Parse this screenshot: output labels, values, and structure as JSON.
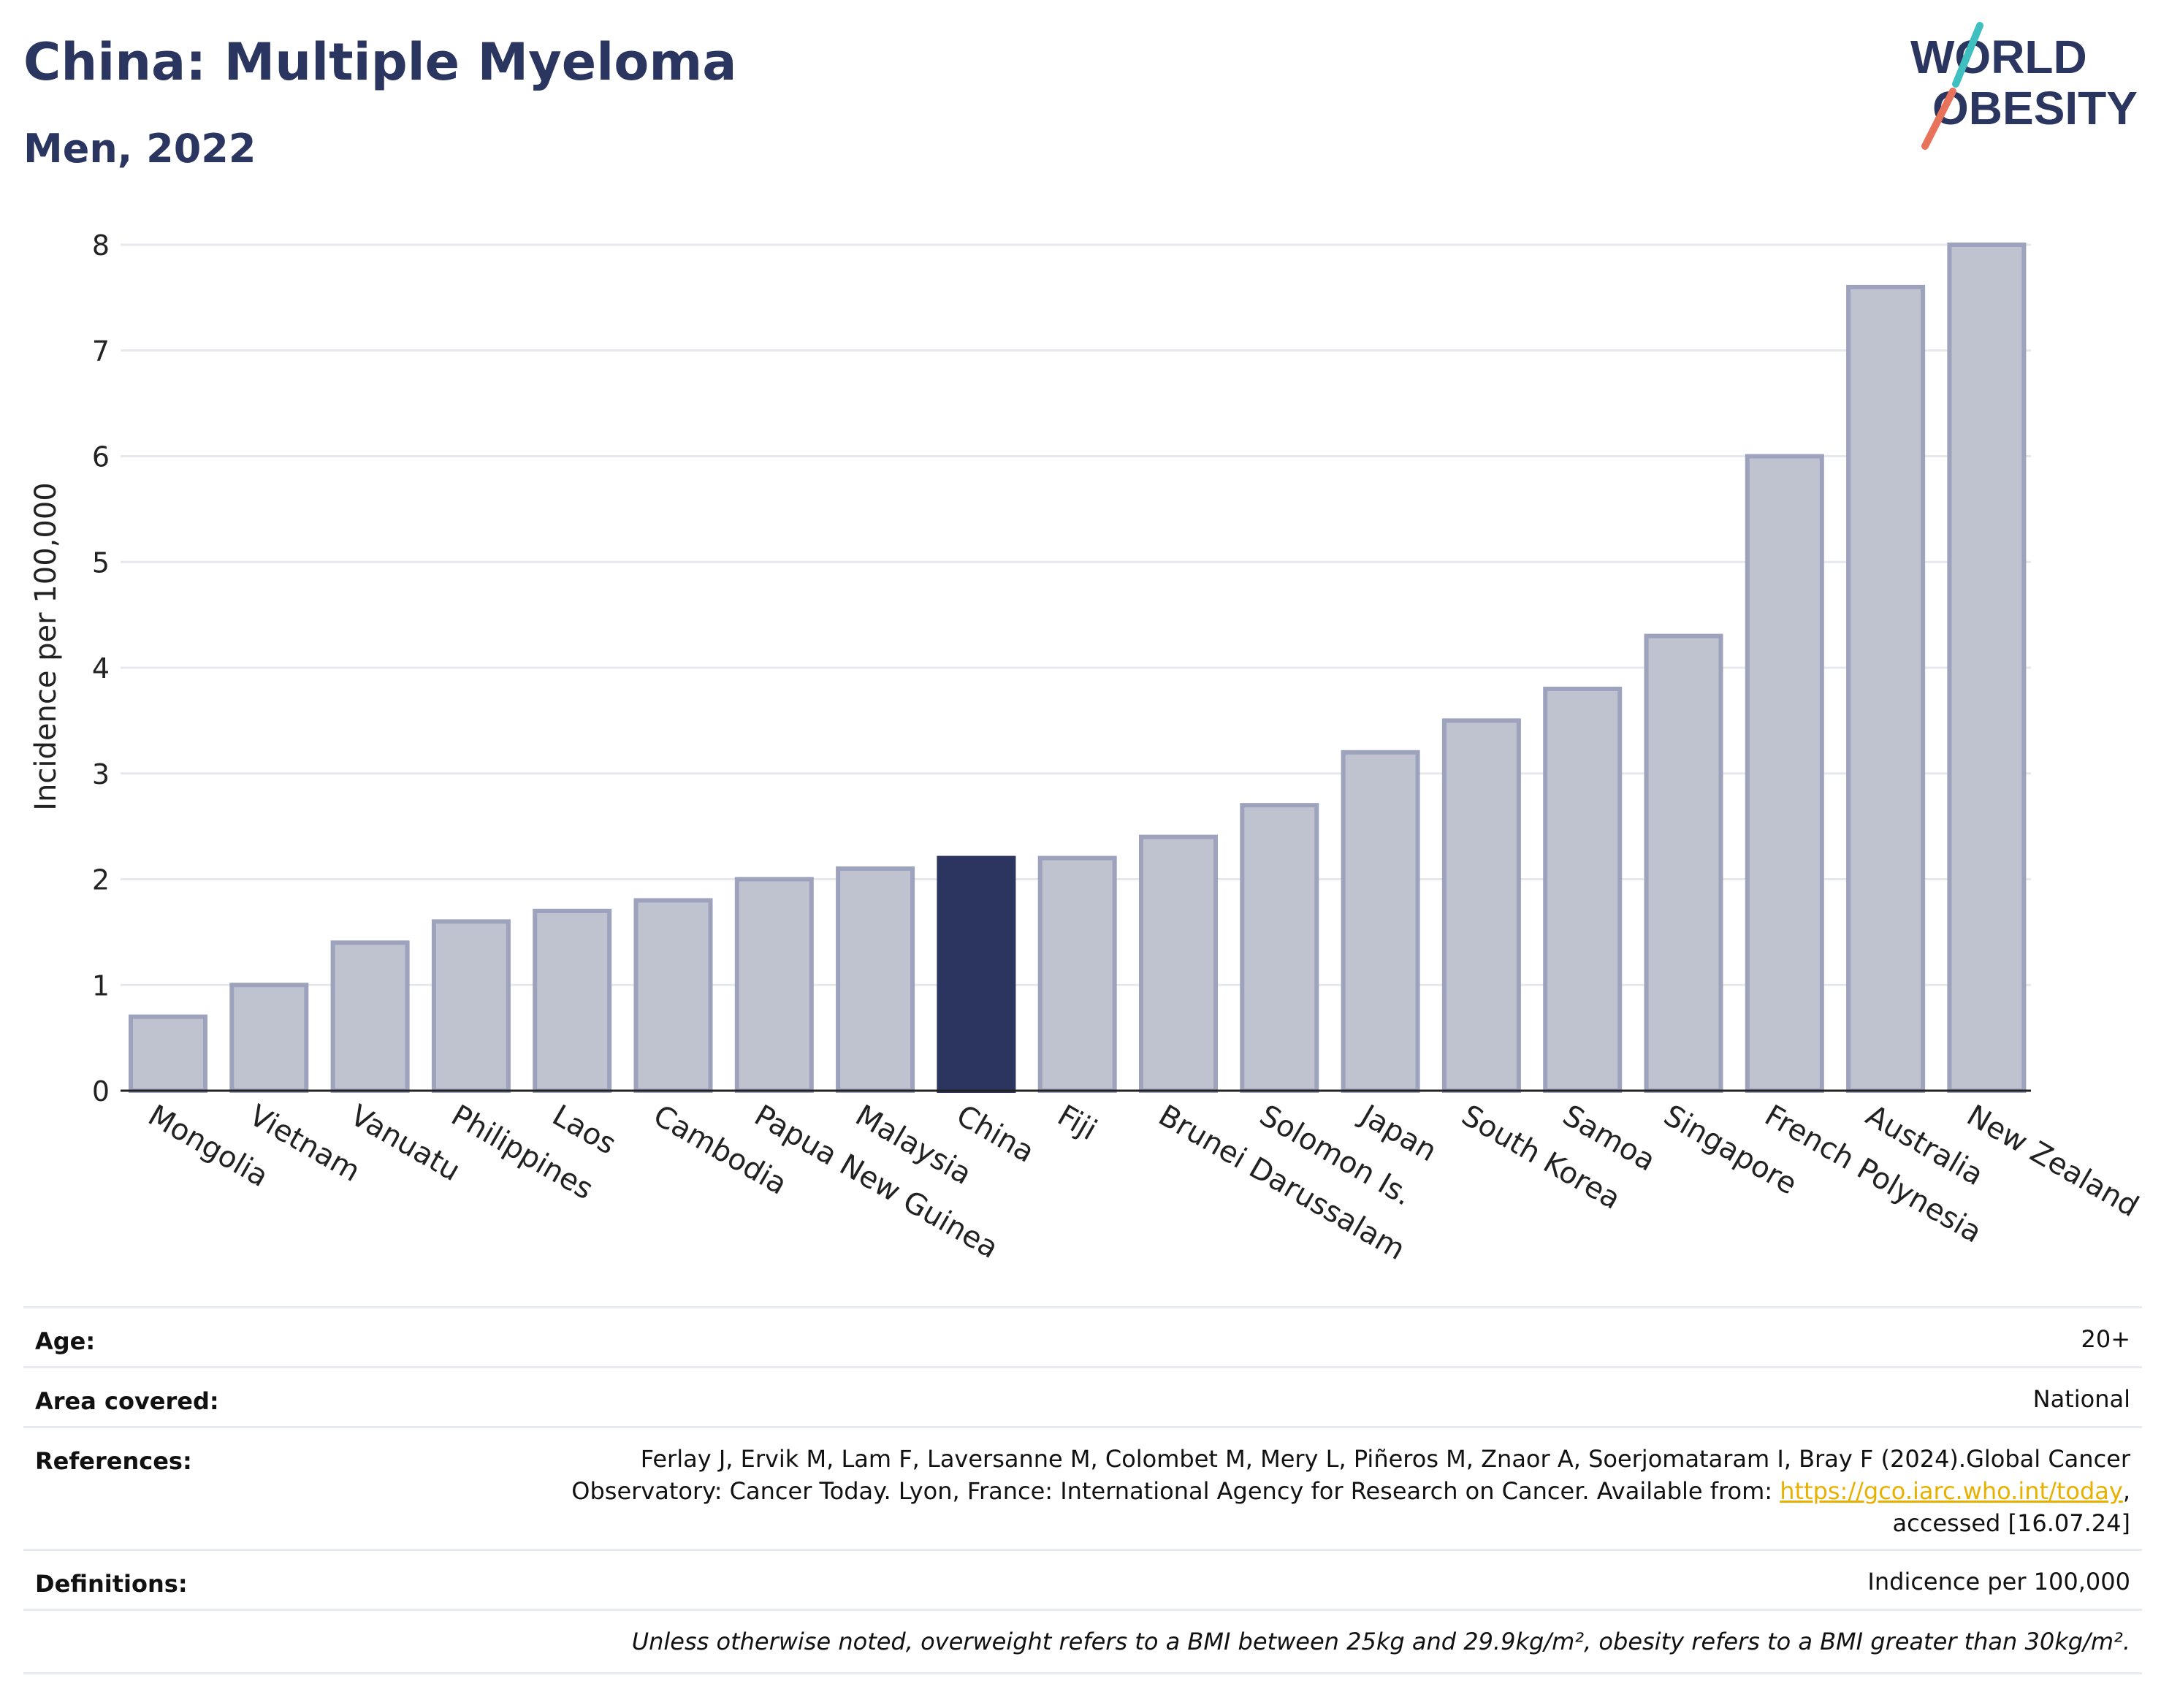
{
  "title": "China: Multiple Myeloma",
  "subtitle": "Men, 2022",
  "logo": {
    "line1": "WORLD",
    "line2": "OBESITY",
    "accent_colors": [
      "#3fbfbf",
      "#e8735a"
    ]
  },
  "colors": {
    "highlight": "#2b3560",
    "bar_fill": "#bfc2cf",
    "bar_stroke": "#9da2bd",
    "grid": "#e6e8ee"
  },
  "chart_data": {
    "type": "bar",
    "categories": [
      "Mongolia",
      "Vietnam",
      "Vanuatu",
      "Philippines",
      "Laos",
      "Cambodia",
      "Papua New Guinea",
      "Malaysia",
      "China",
      "Fiji",
      "Brunei Darussalam",
      "Solomon Is.",
      "Japan",
      "South Korea",
      "Samoa",
      "Singapore",
      "French Polynesia",
      "Australia",
      "New Zealand"
    ],
    "values": [
      0.7,
      1.0,
      1.4,
      1.6,
      1.7,
      1.8,
      2.0,
      2.1,
      2.2,
      2.2,
      2.4,
      2.7,
      3.2,
      3.5,
      3.8,
      4.3,
      6.0,
      7.6,
      8.0
    ],
    "highlight": "China",
    "ylabel": "Incidence per 100,000",
    "ylim": [
      0,
      8
    ],
    "yticks": [
      0,
      1,
      2,
      3,
      4,
      5,
      6,
      7,
      8
    ],
    "grid": true
  },
  "info": {
    "age_label": "Age:",
    "age_value": "20+",
    "area_label": "Area covered:",
    "area_value": "National",
    "references_label": "References:",
    "references_line1": "Ferlay J, Ervik M, Lam F, Laversanne M, Colombet M, Mery L, Piñeros M, Znaor A, Soerjomataram I, Bray F (2024).Global Cancer",
    "references_line2_pre": "Observatory: Cancer Today. Lyon, France: International Agency for Research on Cancer. Available from: ",
    "references_link": "https://gco.iarc.who.int/today",
    "references_line2_post": ",",
    "references_line3": "accessed [16.07.24]",
    "definitions_label": "Definitions:",
    "definitions_value": "Indicence per 100,000",
    "footnote": "Unless otherwise noted, overweight refers to a BMI between 25kg and 29.9kg/m², obesity refers to a BMI greater than 30kg/m²."
  }
}
